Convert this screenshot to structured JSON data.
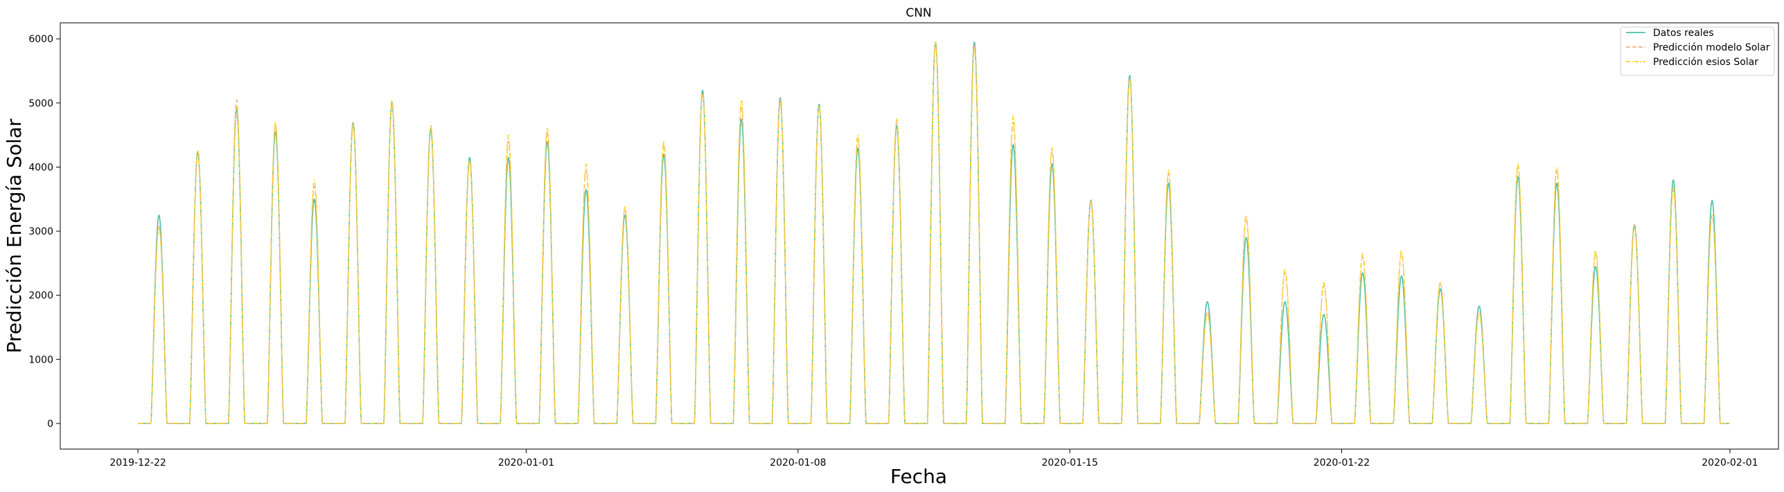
{
  "chart_data": {
    "type": "line",
    "title": "CNN",
    "xlabel": "Fecha",
    "ylabel": "Predicción Energía Solar",
    "xlim": [
      "2019-12-20T00:00",
      "2020-02-02T06:00"
    ],
    "ylim": [
      -400,
      6250
    ],
    "x_ticks": [
      "2019-12-22",
      "2020-01-01",
      "2020-01-08",
      "2020-01-15",
      "2020-01-22",
      "2020-02-01"
    ],
    "y_ticks": [
      0,
      1000,
      2000,
      3000,
      4000,
      5000,
      6000
    ],
    "grid": false,
    "legend_position": "top-right",
    "x_range": [
      "2019-12-22",
      "2020-01-31"
    ],
    "daily_peak_hour": 13,
    "series": [
      {
        "name": "Datos reales",
        "color": "#4dbfa8",
        "style": "solid",
        "daily_peaks": [
          3250,
          4250,
          4900,
          4550,
          3500,
          4700,
          5000,
          4600,
          4150,
          4150,
          4400,
          3650,
          3250,
          4200,
          5200,
          4750,
          5080,
          4980,
          4300,
          4650,
          5950,
          5950,
          4350,
          4050,
          3480,
          5430,
          3750,
          1900,
          2900,
          1900,
          1700,
          2350,
          2300,
          2100,
          1830,
          3850,
          3750,
          2450,
          3100,
          3800,
          3480
        ]
      },
      {
        "name": "Predicción modelo Solar",
        "color": "#f4b183",
        "style": "dashed",
        "daily_peaks": [
          3100,
          4200,
          5050,
          4650,
          3700,
          4650,
          5000,
          4650,
          4100,
          4400,
          4550,
          3950,
          3350,
          4350,
          5150,
          4950,
          5050,
          4950,
          4450,
          4700,
          5950,
          5900,
          4700,
          4250,
          3500,
          5400,
          3900,
          1750,
          3200,
          2350,
          2150,
          2600,
          2650,
          2200,
          1750,
          4000,
          3950,
          2650,
          3100,
          3650,
          3250
        ]
      },
      {
        "name": "Predicción esios Solar",
        "color": "#ffd21f",
        "style": "dashdot",
        "daily_peaks": [
          3050,
          4250,
          4950,
          4700,
          3800,
          4700,
          5050,
          4650,
          4100,
          4500,
          4600,
          4050,
          3380,
          4400,
          5150,
          5050,
          5000,
          4950,
          4500,
          4750,
          5950,
          5850,
          4800,
          4300,
          3450,
          5350,
          3950,
          1700,
          3250,
          2400,
          2200,
          2650,
          2700,
          2200,
          1700,
          4050,
          4000,
          2700,
          3050,
          3700,
          3250
        ]
      }
    ]
  }
}
